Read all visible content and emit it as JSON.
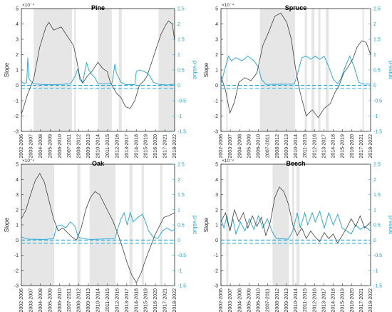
{
  "colors": {
    "slope": "#404040",
    "pvalue": "#1fa3d6",
    "shade": "#e6e6e6",
    "axis": "#262626"
  },
  "chart_data": [
    {
      "type": "line",
      "title": "Pine",
      "ylabel": "Slope",
      "y2label": "p-value",
      "exponent": "×10⁻⁴",
      "ylim": [
        -3,
        5
      ],
      "y2lim": [
        -1.5,
        2.5
      ],
      "yticks": [
        5,
        4,
        3,
        2,
        1,
        0,
        -1,
        -2,
        -3
      ],
      "y2ticks": [
        2.5,
        2,
        1.5,
        1,
        0.5,
        0,
        -0.5,
        -1,
        -1.5
      ],
      "x_labels": [
        "2002-2006",
        "2003-2007",
        "2004-2008",
        "2005-2009",
        "2006-2010",
        "2007-2011",
        "2008-2012",
        "2009-2013",
        "2010-2014",
        "2011-2015",
        "2012-2016",
        "2013-2017",
        "2014-2018",
        "2015-2019",
        "2016-2020",
        "2017-2021",
        "2018-2022"
      ],
      "shaded": [
        [
          0.8,
          3.3
        ],
        [
          3.45,
          3.55
        ],
        [
          5.0,
          5.9
        ],
        [
          6.35,
          6.55
        ],
        [
          8.95,
          10.0
        ]
      ],
      "slope": [
        [
          0,
          -1.9
        ],
        [
          0.4,
          -0.6
        ],
        [
          0.8,
          0.4
        ],
        [
          1.2,
          2.5
        ],
        [
          1.6,
          3.8
        ],
        [
          1.8,
          4.1
        ],
        [
          2.1,
          3.6
        ],
        [
          2.6,
          3.8
        ],
        [
          3.0,
          3.2
        ],
        [
          3.4,
          2.6
        ],
        [
          3.6,
          1.7
        ],
        [
          3.8,
          0.6
        ],
        [
          4.0,
          0.15
        ],
        [
          4.3,
          0.6
        ],
        [
          4.6,
          0.9
        ],
        [
          5.0,
          1.5
        ],
        [
          5.3,
          1.1
        ],
        [
          5.6,
          0.9
        ],
        [
          5.8,
          0.2
        ],
        [
          6.0,
          -0.15
        ],
        [
          6.2,
          -0.5
        ],
        [
          6.5,
          -0.8
        ],
        [
          6.8,
          -1.4
        ],
        [
          7.1,
          -1.5
        ],
        [
          7.4,
          -1.0
        ],
        [
          7.7,
          0.0
        ],
        [
          8.0,
          0.3
        ],
        [
          8.2,
          0.6
        ],
        [
          8.5,
          1.5
        ],
        [
          8.8,
          2.4
        ],
        [
          9.1,
          3.3
        ],
        [
          9.4,
          3.9
        ],
        [
          9.6,
          4.2
        ],
        [
          9.85,
          4.0
        ],
        [
          10.0,
          2.9
        ]
      ],
      "pvalue": [
        [
          0,
          0.12
        ],
        [
          0.2,
          0.05
        ],
        [
          0.35,
          0.1
        ],
        [
          0.42,
          0.9
        ],
        [
          0.5,
          0.2
        ],
        [
          0.8,
          0.05
        ],
        [
          1.6,
          0.02
        ],
        [
          2.6,
          0.03
        ],
        [
          3.2,
          0.05
        ],
        [
          3.5,
          0.3
        ],
        [
          3.7,
          0.55
        ],
        [
          3.8,
          0.2
        ],
        [
          4.0,
          0.08
        ],
        [
          4.25,
          0.75
        ],
        [
          4.4,
          0.5
        ],
        [
          4.6,
          0.35
        ],
        [
          4.8,
          0.25
        ],
        [
          5.0,
          0.05
        ],
        [
          5.9,
          0.05
        ],
        [
          6.0,
          0.35
        ],
        [
          6.1,
          0.7
        ],
        [
          6.2,
          0.4
        ],
        [
          6.5,
          0.1
        ],
        [
          6.8,
          0.02
        ],
        [
          7.4,
          0.02
        ],
        [
          7.5,
          0.45
        ],
        [
          7.7,
          0.5
        ],
        [
          8.0,
          0.45
        ],
        [
          8.2,
          0.4
        ],
        [
          8.4,
          0.3
        ],
        [
          8.6,
          0.1
        ],
        [
          9.0,
          0.03
        ],
        [
          9.5,
          0.01
        ],
        [
          10.0,
          0.04
        ]
      ]
    },
    {
      "type": "line",
      "title": "Spruce",
      "ylabel": "Slope",
      "y2label": "p-value",
      "exponent": "×10⁻⁴",
      "ylim": [
        -3,
        5
      ],
      "y2lim": [
        -1.5,
        2.5
      ],
      "yticks": [
        5,
        4,
        3,
        2,
        1,
        0,
        -1,
        -2,
        -3
      ],
      "y2ticks": [
        2.5,
        2,
        1.5,
        1,
        0.5,
        0,
        -0.5,
        -1,
        -1.5
      ],
      "x_labels": [
        "2002-2006",
        "2003-2007",
        "2004-2008",
        "2005-2009",
        "2006-2010",
        "2007-2011",
        "2008-2012",
        "2009-2013",
        "2010-2014",
        "2011-2015",
        "2012-2016",
        "2013-2017",
        "2014-2018",
        "2015-2019",
        "2016-2020",
        "2017-2021",
        "2018-2022"
      ],
      "shaded": [
        [
          0.35,
          0.45
        ],
        [
          2.6,
          4.95
        ],
        [
          5.6,
          5.75
        ],
        [
          6.05,
          6.25
        ],
        [
          6.5,
          6.65
        ],
        [
          7.0,
          7.2
        ],
        [
          9.45,
          9.55
        ]
      ],
      "slope": [
        [
          0,
          0.6
        ],
        [
          0.3,
          -0.3
        ],
        [
          0.6,
          -1.8
        ],
        [
          0.9,
          -1.1
        ],
        [
          1.2,
          0.2
        ],
        [
          1.6,
          0.5
        ],
        [
          2.0,
          0.3
        ],
        [
          2.4,
          0.8
        ],
        [
          2.8,
          2.6
        ],
        [
          3.2,
          3.5
        ],
        [
          3.6,
          4.5
        ],
        [
          4.0,
          4.7
        ],
        [
          4.4,
          4.1
        ],
        [
          4.7,
          3.0
        ],
        [
          5.0,
          1.0
        ],
        [
          5.3,
          -0.5
        ],
        [
          5.7,
          -2.0
        ],
        [
          6.1,
          -1.6
        ],
        [
          6.5,
          -2.1
        ],
        [
          6.9,
          -1.5
        ],
        [
          7.3,
          -1.2
        ],
        [
          7.6,
          -0.5
        ],
        [
          7.9,
          0.0
        ],
        [
          8.2,
          0.8
        ],
        [
          8.5,
          1.2
        ],
        [
          8.8,
          1.7
        ],
        [
          9.1,
          2.5
        ],
        [
          9.4,
          2.9
        ],
        [
          9.7,
          2.8
        ],
        [
          10.0,
          2.0
        ]
      ],
      "pvalue": [
        [
          0,
          0.05
        ],
        [
          0.3,
          0.6
        ],
        [
          0.5,
          0.95
        ],
        [
          0.7,
          0.8
        ],
        [
          1.0,
          0.9
        ],
        [
          1.4,
          0.8
        ],
        [
          1.8,
          0.95
        ],
        [
          2.2,
          0.8
        ],
        [
          2.5,
          0.6
        ],
        [
          2.7,
          0.2
        ],
        [
          3.0,
          0.03
        ],
        [
          4.9,
          0.04
        ],
        [
          5.1,
          0.35
        ],
        [
          5.4,
          0.9
        ],
        [
          5.7,
          0.95
        ],
        [
          6.0,
          0.85
        ],
        [
          6.3,
          0.95
        ],
        [
          6.6,
          0.85
        ],
        [
          6.9,
          0.95
        ],
        [
          7.2,
          0.6
        ],
        [
          7.5,
          0.2
        ],
        [
          7.8,
          0.05
        ],
        [
          8.0,
          0.2
        ],
        [
          8.3,
          0.6
        ],
        [
          8.6,
          0.95
        ],
        [
          8.9,
          0.6
        ],
        [
          9.2,
          0.1
        ],
        [
          9.5,
          0.04
        ],
        [
          10.0,
          0.04
        ]
      ]
    },
    {
      "type": "line",
      "title": "Oak",
      "ylabel": "Slope",
      "y2label": "p-value",
      "exponent": "×10⁻⁴",
      "ylim": [
        -3,
        5
      ],
      "y2lim": [
        -1.5,
        2.5
      ],
      "yticks": [
        5,
        4,
        3,
        2,
        1,
        0,
        -1,
        -2,
        -3
      ],
      "y2ticks": [
        2.5,
        2,
        1.5,
        1,
        0.5,
        0,
        -0.5,
        -1,
        -1.5
      ],
      "x_labels": [
        "2002-2006",
        "2003-2007",
        "2004-2008",
        "2005-2009",
        "2006-2010",
        "2007-2011",
        "2008-2012",
        "2009-2013",
        "2010-2014",
        "2011-2015",
        "2012-2016",
        "2013-2017",
        "2014-2018",
        "2015-2019",
        "2016-2020",
        "2017-2021",
        "2018-2022"
      ],
      "shaded": [
        [
          0.05,
          2.15
        ],
        [
          3.65,
          3.85
        ],
        [
          4.45,
          6.15
        ],
        [
          7.05,
          7.25
        ],
        [
          7.85,
          8.0
        ],
        [
          9.05,
          9.2
        ]
      ],
      "slope": [
        [
          0,
          1.4
        ],
        [
          0.3,
          2.0
        ],
        [
          0.6,
          3.0
        ],
        [
          0.9,
          3.9
        ],
        [
          1.2,
          4.4
        ],
        [
          1.5,
          3.8
        ],
        [
          1.8,
          2.6
        ],
        [
          2.1,
          1.4
        ],
        [
          2.4,
          0.6
        ],
        [
          2.7,
          0.8
        ],
        [
          3.0,
          0.5
        ],
        [
          3.3,
          0.2
        ],
        [
          3.6,
          0.0
        ],
        [
          3.9,
          0.8
        ],
        [
          4.2,
          2.0
        ],
        [
          4.5,
          2.8
        ],
        [
          4.8,
          3.2
        ],
        [
          5.1,
          3.0
        ],
        [
          5.4,
          2.4
        ],
        [
          5.7,
          1.8
        ],
        [
          6.0,
          1.2
        ],
        [
          6.3,
          0.4
        ],
        [
          6.6,
          -0.5
        ],
        [
          6.9,
          -1.5
        ],
        [
          7.2,
          -2.3
        ],
        [
          7.5,
          -2.8
        ],
        [
          7.8,
          -2.2
        ],
        [
          8.1,
          -1.3
        ],
        [
          8.4,
          -0.5
        ],
        [
          8.7,
          0.3
        ],
        [
          9.0,
          0.9
        ],
        [
          9.3,
          1.5
        ],
        [
          9.6,
          1.6
        ],
        [
          10.0,
          1.8
        ]
      ],
      "pvalue": [
        [
          0,
          0.1
        ],
        [
          0.5,
          0.03
        ],
        [
          1.5,
          0.02
        ],
        [
          2.1,
          0.05
        ],
        [
          2.3,
          0.45
        ],
        [
          2.6,
          0.5
        ],
        [
          2.9,
          0.4
        ],
        [
          3.2,
          0.6
        ],
        [
          3.5,
          0.45
        ],
        [
          3.7,
          0.1
        ],
        [
          4.0,
          0.05
        ],
        [
          4.5,
          0.02
        ],
        [
          6.1,
          0.05
        ],
        [
          6.3,
          0.4
        ],
        [
          6.5,
          0.7
        ],
        [
          6.7,
          0.9
        ],
        [
          6.9,
          0.5
        ],
        [
          7.1,
          0.9
        ],
        [
          7.3,
          0.6
        ],
        [
          7.6,
          0.75
        ],
        [
          7.9,
          0.85
        ],
        [
          8.1,
          0.6
        ],
        [
          8.3,
          0.3
        ],
        [
          8.6,
          0.1
        ],
        [
          8.9,
          0.05
        ],
        [
          9.2,
          0.3
        ],
        [
          9.5,
          0.4
        ],
        [
          9.8,
          0.3
        ],
        [
          10.0,
          0.35
        ]
      ]
    },
    {
      "type": "line",
      "title": "Beech",
      "ylabel": "Slope",
      "y2label": "p-value",
      "exponent": "×10⁻⁴",
      "ylim": [
        -3,
        5
      ],
      "y2lim": [
        -1.5,
        2.5
      ],
      "yticks": [
        5,
        4,
        3,
        2,
        1,
        0,
        -1,
        -2,
        -3
      ],
      "y2ticks": [
        2.5,
        2,
        1.5,
        1,
        0.5,
        0,
        -0.5,
        -1,
        -1.5
      ],
      "x_labels": [
        "2002-2006",
        "2003-2007",
        "2004-2008",
        "2005-2009",
        "2006-2010",
        "2007-2011",
        "2008-2012",
        "2009-2013",
        "2010-2014",
        "2011-2015",
        "2012-2016",
        "2013-2017",
        "2014-2018",
        "2015-2019",
        "2016-2020",
        "2017-2021",
        "2018-2022"
      ],
      "shaded": [
        [
          0.35,
          0.5
        ],
        [
          3.45,
          4.55
        ],
        [
          4.75,
          4.9
        ],
        [
          5.05,
          5.25
        ]
      ],
      "slope": [
        [
          0,
          1.2
        ],
        [
          0.3,
          1.8
        ],
        [
          0.6,
          0.6
        ],
        [
          0.9,
          2.0
        ],
        [
          1.2,
          1.2
        ],
        [
          1.5,
          1.8
        ],
        [
          1.8,
          0.8
        ],
        [
          2.1,
          1.6
        ],
        [
          2.4,
          0.9
        ],
        [
          2.7,
          1.5
        ],
        [
          3.0,
          0.3
        ],
        [
          3.3,
          1.2
        ],
        [
          3.6,
          2.8
        ],
        [
          3.9,
          3.5
        ],
        [
          4.2,
          3.2
        ],
        [
          4.5,
          2.4
        ],
        [
          4.8,
          1.0
        ],
        [
          5.1,
          0.3
        ],
        [
          5.4,
          0.8
        ],
        [
          5.7,
          0.1
        ],
        [
          6.0,
          0.6
        ],
        [
          6.3,
          0.2
        ],
        [
          6.6,
          -0.1
        ],
        [
          6.9,
          0.5
        ],
        [
          7.2,
          0.1
        ],
        [
          7.5,
          0.4
        ],
        [
          7.8,
          -0.2
        ],
        [
          8.1,
          0.3
        ],
        [
          8.4,
          0.8
        ],
        [
          8.7,
          1.4
        ],
        [
          9.0,
          0.9
        ],
        [
          9.3,
          1.6
        ],
        [
          9.6,
          0.8
        ],
        [
          10.0,
          1.2
        ]
      ],
      "pvalue": [
        [
          0,
          0.7
        ],
        [
          0.2,
          0.4
        ],
        [
          0.4,
          0.8
        ],
        [
          0.6,
          0.3
        ],
        [
          0.8,
          0.7
        ],
        [
          1.0,
          0.2
        ],
        [
          1.3,
          0.6
        ],
        [
          1.6,
          0.3
        ],
        [
          1.9,
          0.7
        ],
        [
          2.2,
          0.35
        ],
        [
          2.5,
          0.8
        ],
        [
          2.8,
          0.4
        ],
        [
          3.1,
          0.7
        ],
        [
          3.4,
          0.3
        ],
        [
          3.7,
          0.05
        ],
        [
          4.5,
          0.03
        ],
        [
          4.8,
          0.3
        ],
        [
          5.1,
          0.9
        ],
        [
          5.3,
          0.4
        ],
        [
          5.6,
          0.9
        ],
        [
          5.8,
          0.5
        ],
        [
          6.1,
          0.9
        ],
        [
          6.3,
          0.6
        ],
        [
          6.6,
          0.95
        ],
        [
          6.9,
          0.4
        ],
        [
          7.2,
          0.9
        ],
        [
          7.5,
          0.5
        ],
        [
          7.8,
          0.85
        ],
        [
          8.1,
          0.4
        ],
        [
          8.4,
          0.3
        ],
        [
          8.7,
          0.2
        ],
        [
          9.0,
          0.5
        ],
        [
          9.3,
          0.35
        ],
        [
          9.6,
          0.45
        ],
        [
          10.0,
          0.3
        ]
      ]
    }
  ]
}
